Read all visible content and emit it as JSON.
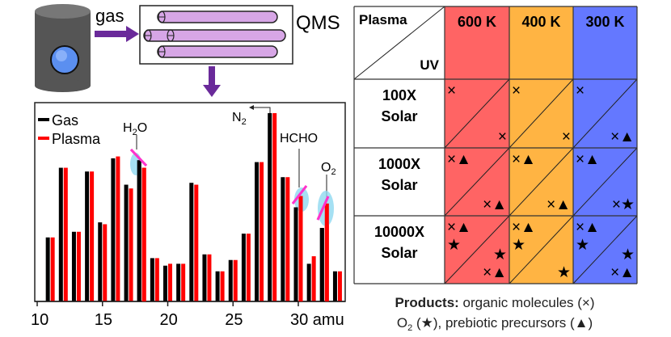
{
  "setup": {
    "gas_label": "gas",
    "qms_label": "QMS"
  },
  "colors": {
    "gas": "#000000",
    "plasma": "#ff0000",
    "arrow": "#6a2a9a",
    "tube": "#d7a6e6",
    "highlight": "#8fd8f0",
    "change_mark": "#ff33cc",
    "col_600": "#ff6464",
    "col_400": "#ffb443",
    "col_300": "#6478ff",
    "cylinder": "#555555",
    "window": "#5b8ff0"
  },
  "chart_data": {
    "type": "bar",
    "xlabel": "amu",
    "x_ticks": [
      10,
      15,
      20,
      25,
      30
    ],
    "x_tick_labels": [
      "10",
      "15",
      "20",
      "25",
      "30 amu"
    ],
    "xlim": [
      10,
      33.5
    ],
    "ylim": [
      0,
      100
    ],
    "categories": [
      11,
      12,
      13,
      14,
      15,
      16,
      17,
      18,
      19,
      20,
      21,
      22,
      23,
      24,
      25,
      26,
      27,
      28,
      29,
      30,
      31,
      32,
      33
    ],
    "series": [
      {
        "name": "Gas",
        "color": "#000000",
        "values": [
          34,
          71,
          37,
          69,
          42,
          76,
          62,
          75,
          23,
          19,
          20,
          63,
          25,
          16,
          22,
          36,
          74,
          100,
          66,
          50,
          20,
          39,
          16
        ]
      },
      {
        "name": "Plasma",
        "color": "#ff0000",
        "values": [
          34,
          71,
          37,
          69,
          41,
          77,
          60,
          71,
          23,
          20,
          20,
          62,
          25,
          16,
          22,
          36,
          74,
          100,
          66,
          56,
          24,
          52,
          16
        ]
      }
    ],
    "legend": "top-left",
    "annotations": [
      {
        "label_main": "H",
        "label_sub": "2",
        "label_tail": "O",
        "mass": 18
      },
      {
        "label_main": "N",
        "label_sub": "2",
        "label_tail": "",
        "mass": 28
      },
      {
        "label_main": "HCHO",
        "label_sub": "",
        "label_tail": "",
        "mass": 30
      },
      {
        "label_main": "O",
        "label_sub": "2",
        "label_tail": "",
        "mass": 32
      }
    ]
  },
  "table": {
    "corner_top": "Plasma",
    "corner_bottom": "UV",
    "columns": [
      "600 K",
      "400 K",
      "300 K"
    ],
    "rows": [
      {
        "line1": "100X",
        "line2": "Solar",
        "cells": [
          {
            "plasma": [
              "×"
            ],
            "uv": [
              "×"
            ]
          },
          {
            "plasma": [
              "×"
            ],
            "uv": [
              "×"
            ]
          },
          {
            "plasma": [
              "×"
            ],
            "uv": [
              "×▲"
            ]
          }
        ]
      },
      {
        "line1": "1000X",
        "line2": "Solar",
        "cells": [
          {
            "plasma": [
              "×▲"
            ],
            "uv": [
              "×▲"
            ]
          },
          {
            "plasma": [
              "×▲"
            ],
            "uv": [
              "×▲"
            ]
          },
          {
            "plasma": [
              "×▲"
            ],
            "uv": [
              "×★"
            ]
          }
        ]
      },
      {
        "line1": "10000X",
        "line2": "Solar",
        "cells": [
          {
            "plasma": [
              "×▲",
              "★"
            ],
            "uv": [
              "★",
              "×▲"
            ]
          },
          {
            "plasma": [
              "×▲",
              "★"
            ],
            "uv": [
              "",
              "★"
            ]
          },
          {
            "plasma": [
              "×▲",
              "★"
            ],
            "uv": [
              "★",
              "×▲"
            ]
          }
        ]
      }
    ]
  },
  "legend_text": {
    "products_label": "Products:",
    "line1_rest": " organic molecules (×)",
    "line2_o": "O",
    "line2_sub": "2",
    "line2_rest": " (★), prebiotic precursors (▲)"
  }
}
